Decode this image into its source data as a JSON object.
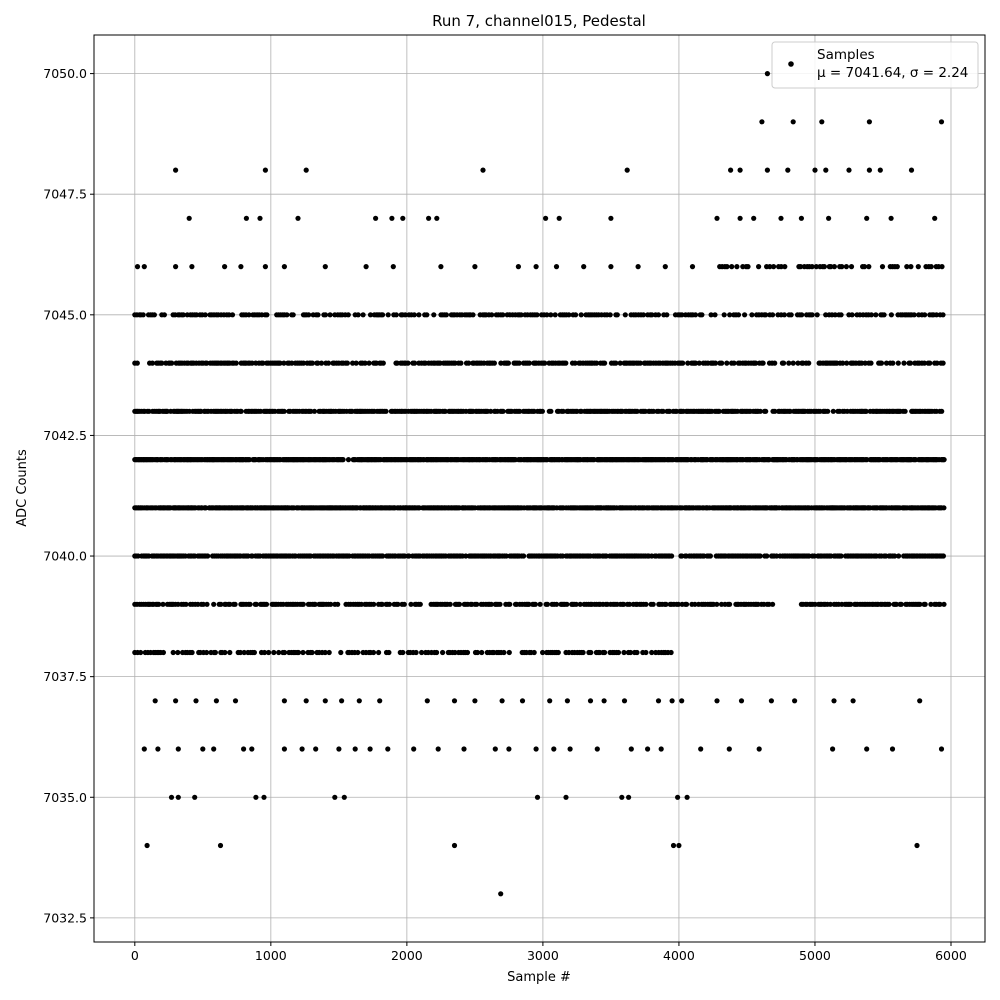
{
  "chart_data": {
    "type": "scatter",
    "title": "Run 7, channel015, Pedestal",
    "xlabel": "Sample #",
    "ylabel": "ADC Counts",
    "xlim": [
      -300,
      6250
    ],
    "ylim": [
      7032.0,
      7050.8
    ],
    "xticks": [
      0,
      1000,
      2000,
      3000,
      4000,
      5000,
      6000
    ],
    "yticks": [
      7032.5,
      7035.0,
      7037.5,
      7040.0,
      7042.5,
      7045.0,
      7047.5,
      7050.0
    ],
    "xtick_labels": [
      "0",
      "1000",
      "2000",
      "3000",
      "4000",
      "5000",
      "6000"
    ],
    "ytick_labels": [
      "7032.5",
      "7035.0",
      "7037.5",
      "7040.0",
      "7042.5",
      "7045.0",
      "7047.5",
      "7050.0"
    ],
    "grid": true,
    "legend_position": "top-right",
    "legend": {
      "label": "Samples",
      "stats": "μ = 7041.64, σ = 2.24"
    },
    "series": [
      {
        "name": "Samples",
        "color": "#000000",
        "x_range": [
          0,
          5950
        ],
        "dense_levels": [
          {
            "y": 7040,
            "x_ranges": [
              [
                0,
                5950
              ]
            ]
          },
          {
            "y": 7041,
            "x_ranges": [
              [
                0,
                5950
              ]
            ]
          },
          {
            "y": 7042,
            "x_ranges": [
              [
                0,
                5950
              ]
            ]
          },
          {
            "y": 7043,
            "x_ranges": [
              [
                0,
                5950
              ]
            ]
          },
          {
            "y": 7044,
            "x_ranges": [
              [
                0,
                5950
              ]
            ]
          },
          {
            "y": 7039,
            "x_ranges": [
              [
                0,
                4700
              ],
              [
                4900,
                5950
              ]
            ]
          },
          {
            "y": 7045,
            "x_ranges": [
              [
                0,
                5950
              ]
            ]
          },
          {
            "y": 7038,
            "x_ranges": [
              [
                0,
                4000
              ]
            ]
          },
          {
            "y": 7046,
            "x_ranges": [
              [
                4300,
                5950
              ]
            ]
          }
        ],
        "points": [
          [
            300,
            7048
          ],
          [
            960,
            7048
          ],
          [
            1260,
            7048
          ],
          [
            2560,
            7048
          ],
          [
            3620,
            7048
          ],
          [
            4380,
            7048
          ],
          [
            4450,
            7048
          ],
          [
            4650,
            7048
          ],
          [
            4800,
            7048
          ],
          [
            5000,
            7048
          ],
          [
            5080,
            7048
          ],
          [
            5250,
            7048
          ],
          [
            5400,
            7048
          ],
          [
            5480,
            7048
          ],
          [
            5710,
            7048
          ],
          [
            4650,
            7050
          ],
          [
            4610,
            7049
          ],
          [
            4840,
            7049
          ],
          [
            5050,
            7049
          ],
          [
            5400,
            7049
          ],
          [
            5930,
            7049
          ],
          [
            400,
            7047
          ],
          [
            820,
            7047
          ],
          [
            920,
            7047
          ],
          [
            1200,
            7047
          ],
          [
            1770,
            7047
          ],
          [
            1890,
            7047
          ],
          [
            1970,
            7047
          ],
          [
            2160,
            7047
          ],
          [
            2220,
            7047
          ],
          [
            3020,
            7047
          ],
          [
            3120,
            7047
          ],
          [
            3500,
            7047
          ],
          [
            4280,
            7047
          ],
          [
            4450,
            7047
          ],
          [
            4550,
            7047
          ],
          [
            4750,
            7047
          ],
          [
            4900,
            7047
          ],
          [
            5100,
            7047
          ],
          [
            5380,
            7047
          ],
          [
            5560,
            7047
          ],
          [
            5880,
            7047
          ],
          [
            20,
            7046
          ],
          [
            70,
            7046
          ],
          [
            300,
            7046
          ],
          [
            420,
            7046
          ],
          [
            660,
            7046
          ],
          [
            780,
            7046
          ],
          [
            960,
            7046
          ],
          [
            1100,
            7046
          ],
          [
            1400,
            7046
          ],
          [
            1700,
            7046
          ],
          [
            1900,
            7046
          ],
          [
            2250,
            7046
          ],
          [
            2500,
            7046
          ],
          [
            2820,
            7046
          ],
          [
            2950,
            7046
          ],
          [
            3100,
            7046
          ],
          [
            3300,
            7046
          ],
          [
            3500,
            7046
          ],
          [
            3700,
            7046
          ],
          [
            3900,
            7046
          ],
          [
            4100,
            7046
          ],
          [
            150,
            7037
          ],
          [
            300,
            7037
          ],
          [
            450,
            7037
          ],
          [
            600,
            7037
          ],
          [
            740,
            7037
          ],
          [
            1100,
            7037
          ],
          [
            1260,
            7037
          ],
          [
            1400,
            7037
          ],
          [
            1520,
            7037
          ],
          [
            1650,
            7037
          ],
          [
            1800,
            7037
          ],
          [
            2150,
            7037
          ],
          [
            2350,
            7037
          ],
          [
            2500,
            7037
          ],
          [
            2700,
            7037
          ],
          [
            2850,
            7037
          ],
          [
            3050,
            7037
          ],
          [
            3180,
            7037
          ],
          [
            3350,
            7037
          ],
          [
            3450,
            7037
          ],
          [
            3600,
            7037
          ],
          [
            3850,
            7037
          ],
          [
            3950,
            7037
          ],
          [
            4020,
            7037
          ],
          [
            4280,
            7037
          ],
          [
            4460,
            7037
          ],
          [
            4680,
            7037
          ],
          [
            4850,
            7037
          ],
          [
            5140,
            7037
          ],
          [
            5280,
            7037
          ],
          [
            5770,
            7037
          ],
          [
            70,
            7036
          ],
          [
            170,
            7036
          ],
          [
            320,
            7036
          ],
          [
            500,
            7036
          ],
          [
            580,
            7036
          ],
          [
            800,
            7036
          ],
          [
            860,
            7036
          ],
          [
            1100,
            7036
          ],
          [
            1230,
            7036
          ],
          [
            1330,
            7036
          ],
          [
            1500,
            7036
          ],
          [
            1620,
            7036
          ],
          [
            1730,
            7036
          ],
          [
            1860,
            7036
          ],
          [
            2050,
            7036
          ],
          [
            2230,
            7036
          ],
          [
            2420,
            7036
          ],
          [
            2650,
            7036
          ],
          [
            2750,
            7036
          ],
          [
            2950,
            7036
          ],
          [
            3080,
            7036
          ],
          [
            3200,
            7036
          ],
          [
            3400,
            7036
          ],
          [
            3650,
            7036
          ],
          [
            3770,
            7036
          ],
          [
            3870,
            7036
          ],
          [
            4160,
            7036
          ],
          [
            4370,
            7036
          ],
          [
            4590,
            7036
          ],
          [
            5130,
            7036
          ],
          [
            5380,
            7036
          ],
          [
            5570,
            7036
          ],
          [
            5930,
            7036
          ],
          [
            270,
            7035
          ],
          [
            320,
            7035
          ],
          [
            440,
            7035
          ],
          [
            890,
            7035
          ],
          [
            950,
            7035
          ],
          [
            1470,
            7035
          ],
          [
            1540,
            7035
          ],
          [
            2960,
            7035
          ],
          [
            3170,
            7035
          ],
          [
            3580,
            7035
          ],
          [
            3630,
            7035
          ],
          [
            3990,
            7035
          ],
          [
            4060,
            7035
          ],
          [
            90,
            7034
          ],
          [
            630,
            7034
          ],
          [
            2350,
            7034
          ],
          [
            3960,
            7034
          ],
          [
            4000,
            7034
          ],
          [
            5750,
            7034
          ],
          [
            2690,
            7033
          ]
        ]
      }
    ]
  }
}
